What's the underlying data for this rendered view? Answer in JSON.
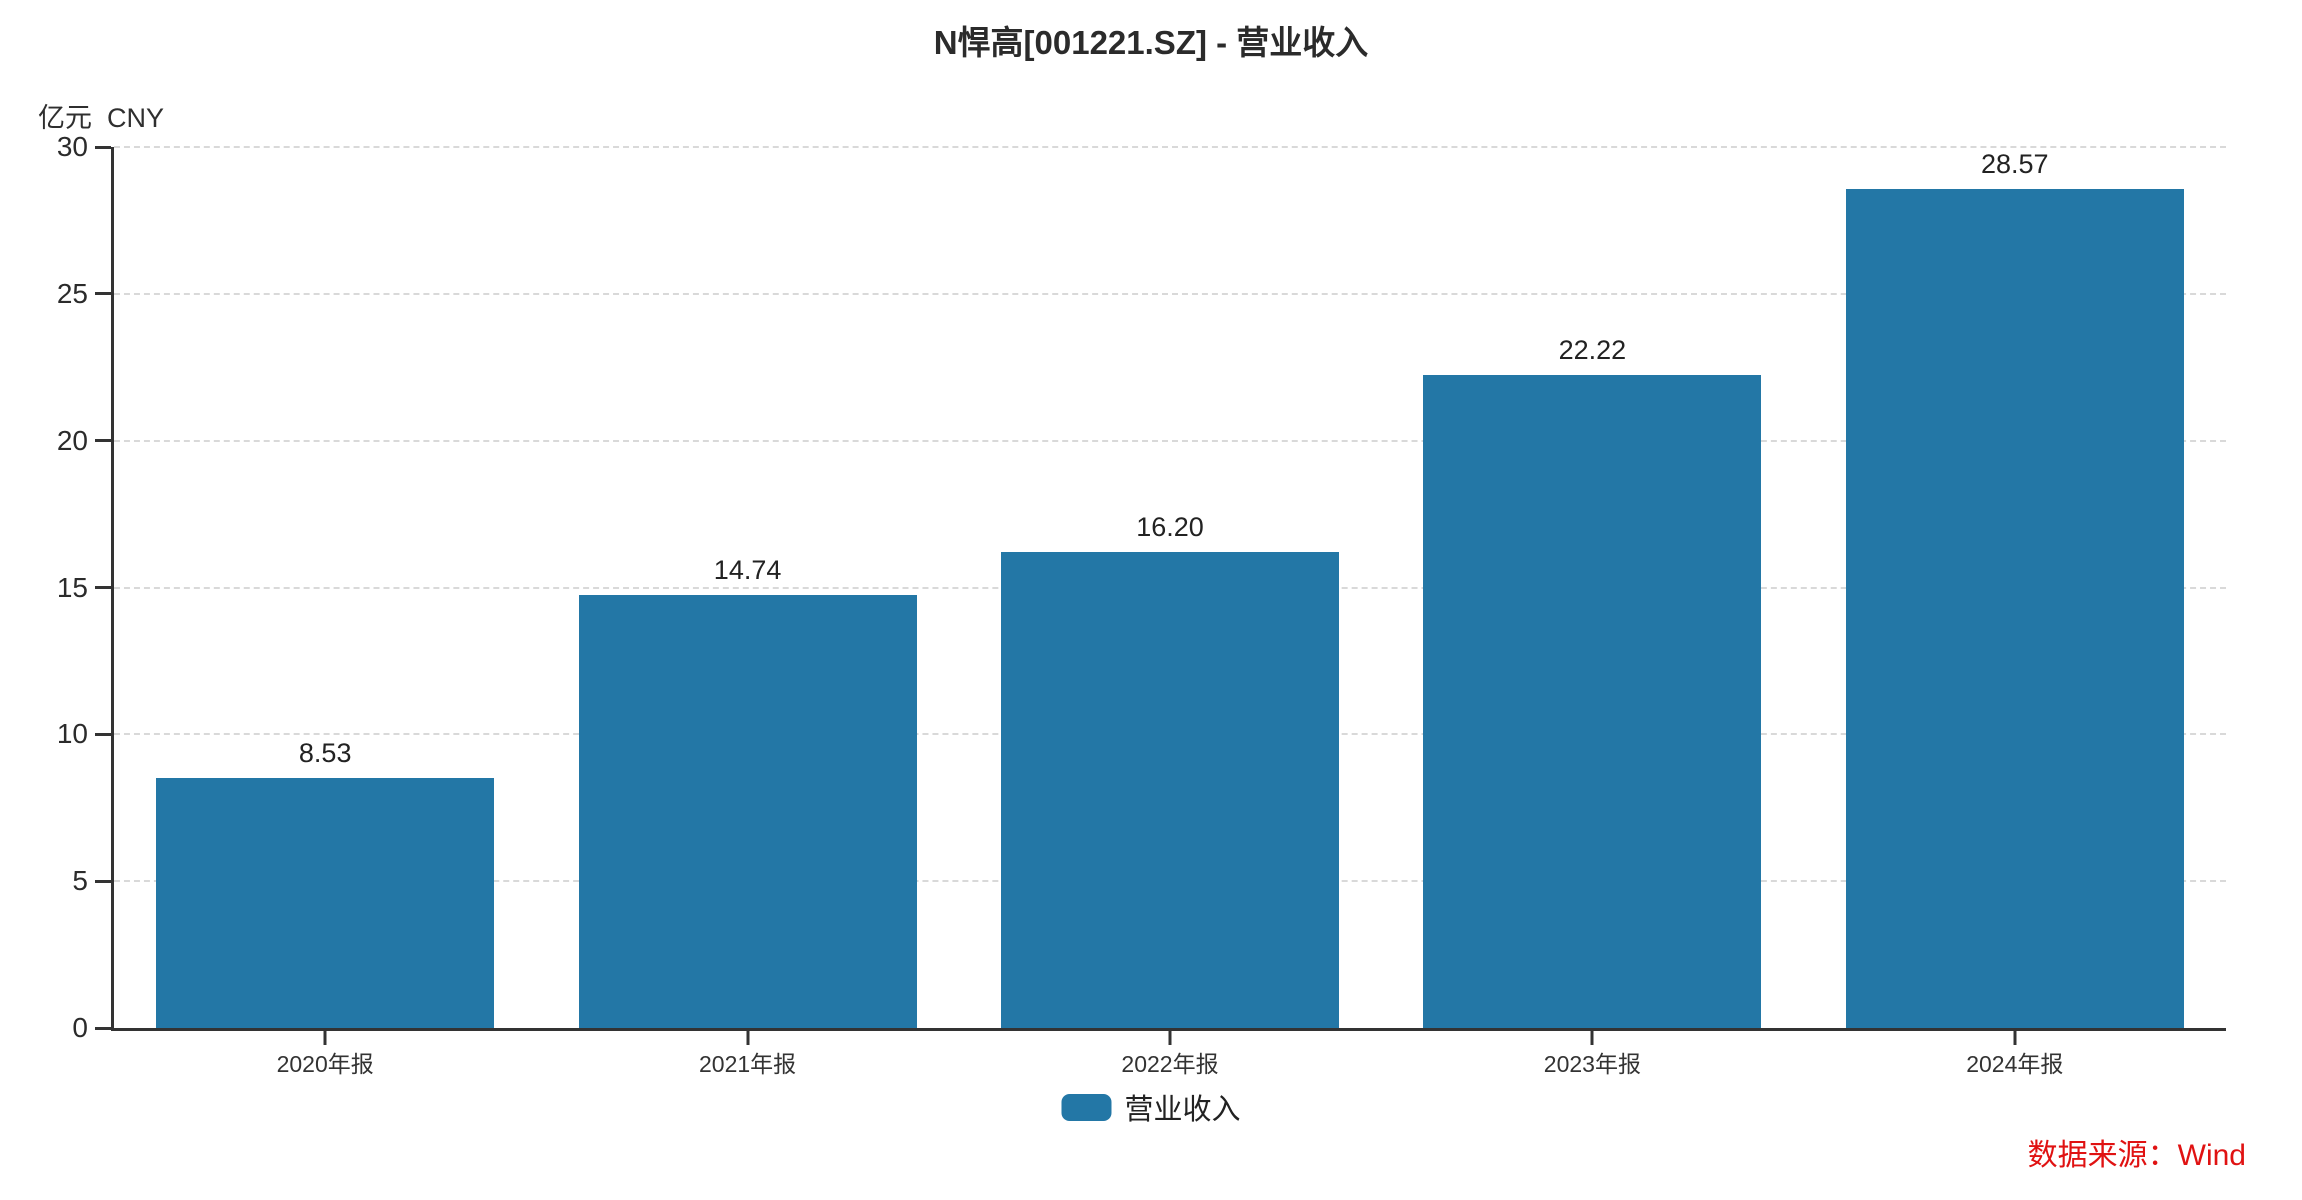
{
  "title": "N悍高[001221.SZ] - 营业收入",
  "unit_label": "亿元  CNY",
  "legend": {
    "label": "营业收入"
  },
  "source": {
    "label": "数据来源：Wind"
  },
  "colors": {
    "bar": "#2377a6",
    "grid": "#d9d9d9",
    "axis": "#333333",
    "source_text": "#e01212"
  },
  "chart_data": {
    "type": "bar",
    "title": "N悍高[001221.SZ] - 营业收入",
    "categories": [
      "2020年报",
      "2021年报",
      "2022年报",
      "2023年报",
      "2024年报"
    ],
    "values": [
      8.53,
      14.74,
      16.2,
      22.22,
      28.57
    ],
    "series_name": "营业收入",
    "xlabel": "",
    "ylabel": "亿元 CNY",
    "ylim": [
      0,
      30
    ],
    "yticks": [
      0,
      5,
      10,
      15,
      20,
      25,
      30
    ],
    "value_label_decimals": 2,
    "grid": "horizontal-dashed",
    "legend_position": "bottom-center",
    "bar_width_fraction": 0.8
  }
}
